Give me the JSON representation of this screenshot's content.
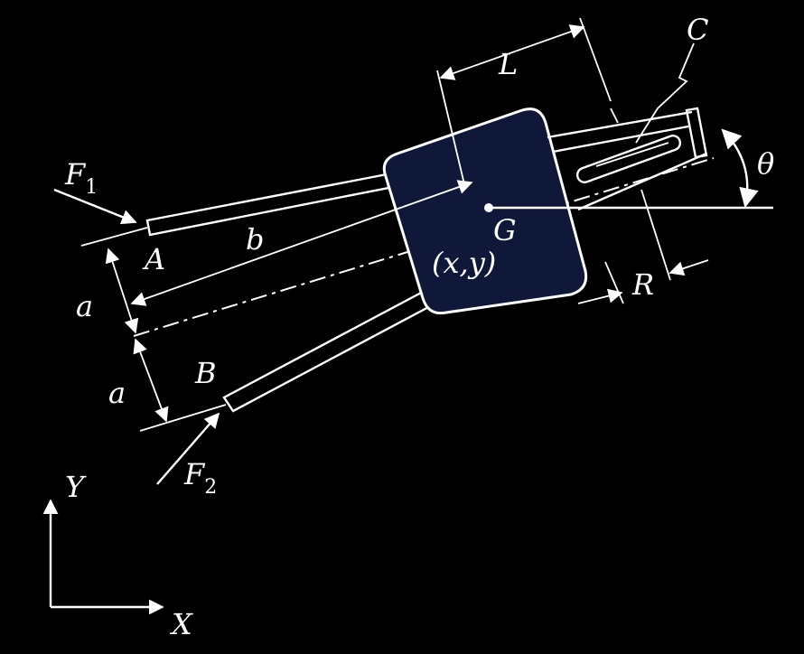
{
  "labels": {
    "force1": "F",
    "force1_sub": "1",
    "force2": "F",
    "force2_sub": "2",
    "point_a": "A",
    "point_b": "B",
    "point_c": "C",
    "point_g": "G",
    "coords": "(x,y)",
    "length_b": "b",
    "length_a_upper": "a",
    "length_a_lower": "a",
    "length_l": "L",
    "radius_r": "R",
    "angle_theta": "θ",
    "axis_x": "X",
    "axis_y": "Y"
  },
  "colors": {
    "background": "#000000",
    "line": "#ffffff",
    "body_fill": "#0f1838"
  }
}
